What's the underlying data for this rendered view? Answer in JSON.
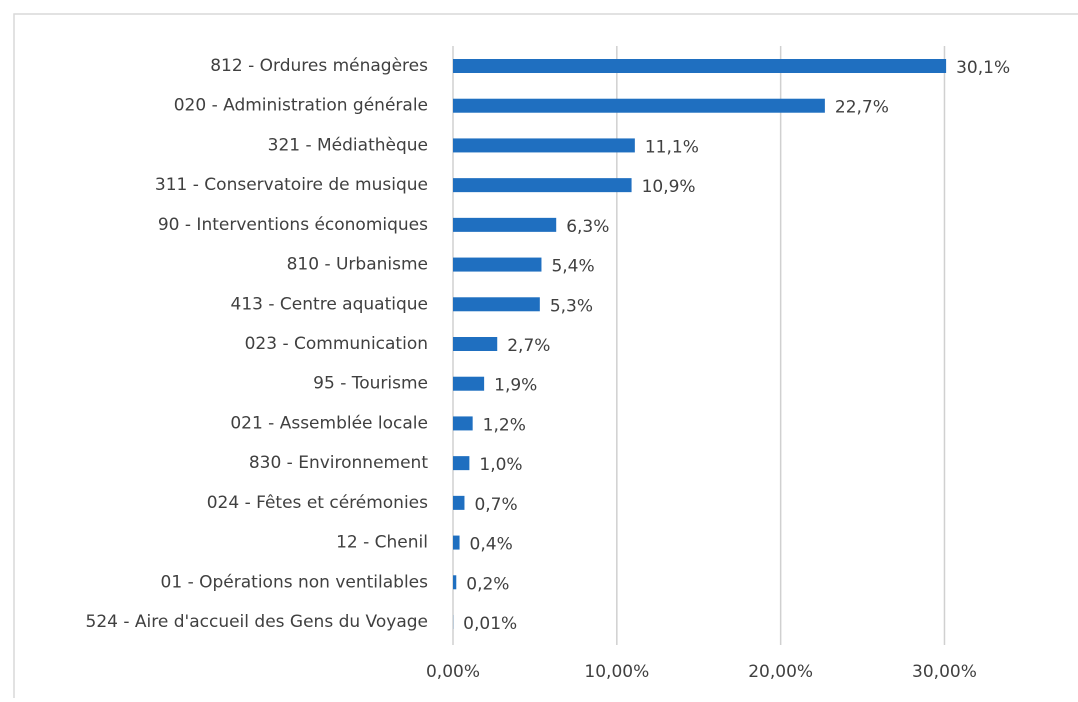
{
  "chart_data": {
    "type": "barh",
    "categories": [
      "812 - Ordures ménagères",
      "020 - Administration générale",
      "321 - Médiathèque",
      "311 - Conservatoire de musique",
      "90 - Interventions économiques",
      "810 - Urbanisme",
      "413 - Centre aquatique",
      "023 - Communication",
      "95 - Tourisme",
      "021 - Assemblée locale",
      "830 - Environnement",
      "024 - Fêtes et cérémonies",
      "12 - Chenil",
      "01 - Opérations non ventilables",
      "524 - Aire d'accueil des Gens du Voyage"
    ],
    "values": [
      30.1,
      22.7,
      11.1,
      10.9,
      6.3,
      5.4,
      5.3,
      2.7,
      1.9,
      1.2,
      1.0,
      0.7,
      0.4,
      0.2,
      0.01
    ],
    "value_labels": [
      "30,1%",
      "22,7%",
      "11,1%",
      "10,9%",
      "6,3%",
      "5,4%",
      "5,3%",
      "2,7%",
      "1,9%",
      "1,2%",
      "1,0%",
      "0,7%",
      "0,4%",
      "0,2%",
      "0,01%"
    ],
    "color": "#1f6fc0",
    "xlim": [
      0,
      34
    ],
    "xticks": [
      {
        "value": 0,
        "label": "0,00%"
      },
      {
        "value": 10,
        "label": "10,00%"
      },
      {
        "value": 20,
        "label": "20,00%"
      },
      {
        "value": 30,
        "label": "30,00%"
      }
    ],
    "grid": true
  }
}
